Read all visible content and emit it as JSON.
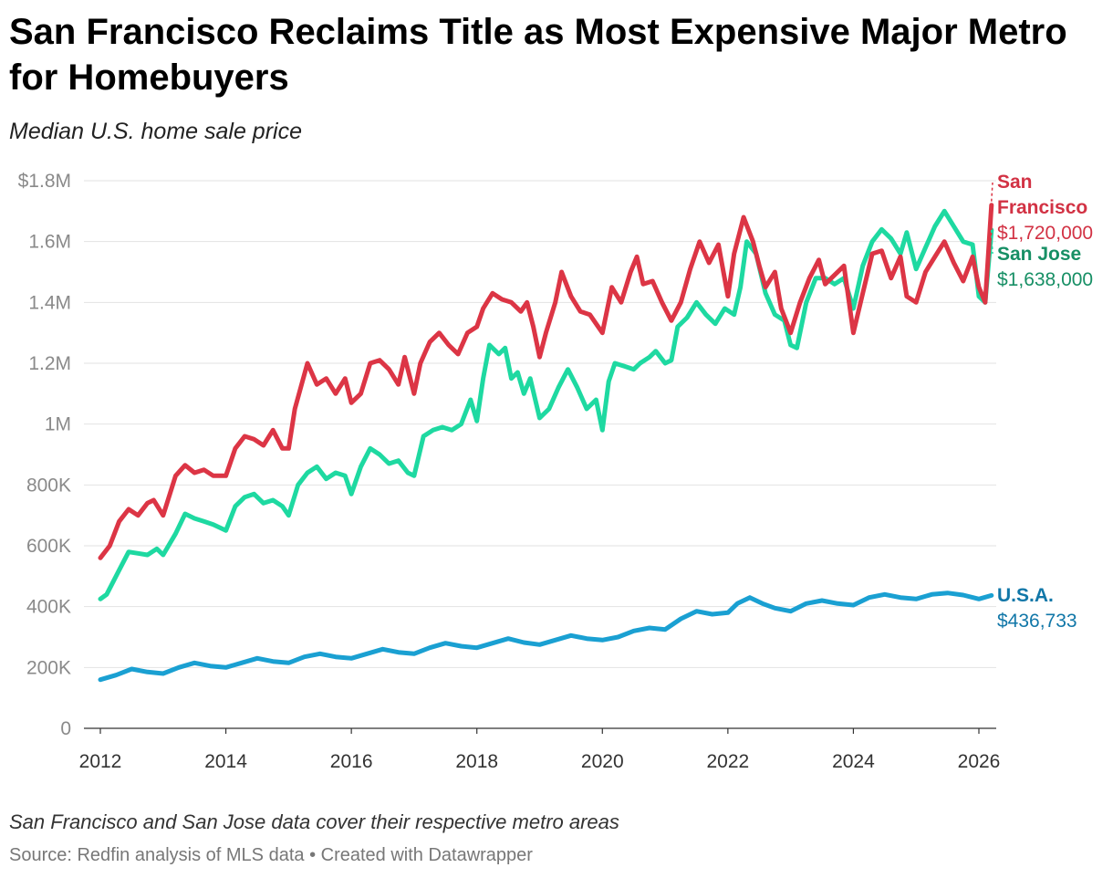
{
  "title": "San Francisco Reclaims Title as Most Expensive Major Metro for Homebuyers",
  "subtitle": "Median U.S. home sale price",
  "note": "San Francisco and San Jose data cover their respective metro areas",
  "source": "Source: Redfin analysis of MLS data • Created with Datawrapper",
  "chart_data": {
    "type": "line",
    "xlim": [
      2012,
      2026.3
    ],
    "ylim": [
      0,
      1800000
    ],
    "y_ticks": [
      {
        "value": 0,
        "label": "0"
      },
      {
        "value": 200000,
        "label": "200K"
      },
      {
        "value": 400000,
        "label": "400K"
      },
      {
        "value": 600000,
        "label": "600K"
      },
      {
        "value": 800000,
        "label": "800K"
      },
      {
        "value": 1000000,
        "label": "1M"
      },
      {
        "value": 1200000,
        "label": "1.2M"
      },
      {
        "value": 1400000,
        "label": "1.4M"
      },
      {
        "value": 1600000,
        "label": "1.6M"
      },
      {
        "value": 1800000,
        "label": "$1.8M"
      }
    ],
    "x_ticks": [
      {
        "value": 2012,
        "label": "2012"
      },
      {
        "value": 2014,
        "label": "2014"
      },
      {
        "value": 2016,
        "label": "2016"
      },
      {
        "value": 2018,
        "label": "2018"
      },
      {
        "value": 2020,
        "label": "2020"
      },
      {
        "value": 2022,
        "label": "2022"
      },
      {
        "value": 2024,
        "label": "2024"
      },
      {
        "value": 2026,
        "label": "2026"
      }
    ],
    "grid": true,
    "legend": "direct labels at line ends (right)",
    "series": [
      {
        "name": "San Francisco",
        "end_label": "$1,720,000",
        "color": "#dc3545",
        "label_color": "#d23244",
        "points": [
          [
            2012.0,
            560000
          ],
          [
            2012.15,
            600000
          ],
          [
            2012.3,
            680000
          ],
          [
            2012.45,
            720000
          ],
          [
            2012.6,
            700000
          ],
          [
            2012.75,
            740000
          ],
          [
            2012.85,
            750000
          ],
          [
            2013.0,
            700000
          ],
          [
            2013.2,
            830000
          ],
          [
            2013.35,
            865000
          ],
          [
            2013.5,
            840000
          ],
          [
            2013.65,
            850000
          ],
          [
            2013.8,
            830000
          ],
          [
            2014.0,
            830000
          ],
          [
            2014.15,
            920000
          ],
          [
            2014.3,
            960000
          ],
          [
            2014.45,
            950000
          ],
          [
            2014.6,
            930000
          ],
          [
            2014.75,
            980000
          ],
          [
            2014.9,
            920000
          ],
          [
            2015.0,
            920000
          ],
          [
            2015.1,
            1050000
          ],
          [
            2015.3,
            1200000
          ],
          [
            2015.45,
            1130000
          ],
          [
            2015.6,
            1150000
          ],
          [
            2015.75,
            1100000
          ],
          [
            2015.9,
            1150000
          ],
          [
            2016.0,
            1070000
          ],
          [
            2016.15,
            1100000
          ],
          [
            2016.3,
            1200000
          ],
          [
            2016.45,
            1210000
          ],
          [
            2016.6,
            1180000
          ],
          [
            2016.75,
            1130000
          ],
          [
            2016.85,
            1220000
          ],
          [
            2017.0,
            1100000
          ],
          [
            2017.1,
            1200000
          ],
          [
            2017.25,
            1270000
          ],
          [
            2017.4,
            1300000
          ],
          [
            2017.55,
            1260000
          ],
          [
            2017.7,
            1230000
          ],
          [
            2017.85,
            1300000
          ],
          [
            2018.0,
            1320000
          ],
          [
            2018.1,
            1380000
          ],
          [
            2018.25,
            1430000
          ],
          [
            2018.4,
            1410000
          ],
          [
            2018.55,
            1400000
          ],
          [
            2018.7,
            1370000
          ],
          [
            2018.8,
            1400000
          ],
          [
            2018.9,
            1320000
          ],
          [
            2019.0,
            1220000
          ],
          [
            2019.1,
            1300000
          ],
          [
            2019.25,
            1400000
          ],
          [
            2019.35,
            1500000
          ],
          [
            2019.5,
            1420000
          ],
          [
            2019.65,
            1370000
          ],
          [
            2019.8,
            1360000
          ],
          [
            2020.0,
            1300000
          ],
          [
            2020.15,
            1450000
          ],
          [
            2020.3,
            1400000
          ],
          [
            2020.45,
            1500000
          ],
          [
            2020.55,
            1550000
          ],
          [
            2020.65,
            1460000
          ],
          [
            2020.8,
            1470000
          ],
          [
            2020.95,
            1400000
          ],
          [
            2021.1,
            1340000
          ],
          [
            2021.25,
            1400000
          ],
          [
            2021.4,
            1510000
          ],
          [
            2021.55,
            1600000
          ],
          [
            2021.7,
            1530000
          ],
          [
            2021.85,
            1590000
          ],
          [
            2022.0,
            1420000
          ],
          [
            2022.1,
            1560000
          ],
          [
            2022.25,
            1680000
          ],
          [
            2022.4,
            1600000
          ],
          [
            2022.5,
            1520000
          ],
          [
            2022.6,
            1450000
          ],
          [
            2022.75,
            1500000
          ],
          [
            2022.85,
            1380000
          ],
          [
            2023.0,
            1300000
          ],
          [
            2023.15,
            1400000
          ],
          [
            2023.3,
            1480000
          ],
          [
            2023.45,
            1540000
          ],
          [
            2023.55,
            1460000
          ],
          [
            2023.7,
            1490000
          ],
          [
            2023.85,
            1520000
          ],
          [
            2024.0,
            1300000
          ],
          [
            2024.15,
            1430000
          ],
          [
            2024.3,
            1560000
          ],
          [
            2024.45,
            1570000
          ],
          [
            2024.6,
            1480000
          ],
          [
            2024.75,
            1550000
          ],
          [
            2024.85,
            1420000
          ],
          [
            2025.0,
            1400000
          ],
          [
            2025.15,
            1500000
          ],
          [
            2025.3,
            1550000
          ],
          [
            2025.45,
            1600000
          ],
          [
            2025.6,
            1530000
          ],
          [
            2025.75,
            1470000
          ],
          [
            2025.9,
            1550000
          ],
          [
            2026.0,
            1450000
          ],
          [
            2026.1,
            1400000
          ],
          [
            2026.2,
            1720000
          ]
        ]
      },
      {
        "name": "San Jose",
        "end_label": "$1,638,000",
        "color": "#1ed9a1",
        "label_color": "#178f65",
        "points": [
          [
            2012.0,
            425000
          ],
          [
            2012.1,
            440000
          ],
          [
            2012.3,
            520000
          ],
          [
            2012.45,
            580000
          ],
          [
            2012.6,
            575000
          ],
          [
            2012.75,
            570000
          ],
          [
            2012.9,
            590000
          ],
          [
            2013.0,
            570000
          ],
          [
            2013.2,
            640000
          ],
          [
            2013.35,
            705000
          ],
          [
            2013.5,
            690000
          ],
          [
            2013.65,
            680000
          ],
          [
            2013.8,
            670000
          ],
          [
            2013.9,
            660000
          ],
          [
            2014.0,
            650000
          ],
          [
            2014.15,
            730000
          ],
          [
            2014.3,
            760000
          ],
          [
            2014.45,
            770000
          ],
          [
            2014.6,
            740000
          ],
          [
            2014.75,
            750000
          ],
          [
            2014.9,
            730000
          ],
          [
            2015.0,
            700000
          ],
          [
            2015.15,
            800000
          ],
          [
            2015.3,
            840000
          ],
          [
            2015.45,
            860000
          ],
          [
            2015.6,
            820000
          ],
          [
            2015.75,
            840000
          ],
          [
            2015.9,
            830000
          ],
          [
            2016.0,
            770000
          ],
          [
            2016.15,
            860000
          ],
          [
            2016.3,
            920000
          ],
          [
            2016.45,
            900000
          ],
          [
            2016.6,
            870000
          ],
          [
            2016.75,
            880000
          ],
          [
            2016.9,
            840000
          ],
          [
            2017.0,
            830000
          ],
          [
            2017.15,
            960000
          ],
          [
            2017.3,
            980000
          ],
          [
            2017.45,
            990000
          ],
          [
            2017.6,
            980000
          ],
          [
            2017.75,
            1000000
          ],
          [
            2017.9,
            1080000
          ],
          [
            2018.0,
            1010000
          ],
          [
            2018.1,
            1150000
          ],
          [
            2018.2,
            1260000
          ],
          [
            2018.35,
            1230000
          ],
          [
            2018.45,
            1250000
          ],
          [
            2018.55,
            1150000
          ],
          [
            2018.65,
            1170000
          ],
          [
            2018.75,
            1100000
          ],
          [
            2018.85,
            1150000
          ],
          [
            2019.0,
            1020000
          ],
          [
            2019.15,
            1050000
          ],
          [
            2019.3,
            1120000
          ],
          [
            2019.45,
            1180000
          ],
          [
            2019.6,
            1120000
          ],
          [
            2019.75,
            1050000
          ],
          [
            2019.9,
            1080000
          ],
          [
            2020.0,
            980000
          ],
          [
            2020.1,
            1140000
          ],
          [
            2020.2,
            1200000
          ],
          [
            2020.35,
            1190000
          ],
          [
            2020.5,
            1180000
          ],
          [
            2020.6,
            1200000
          ],
          [
            2020.75,
            1220000
          ],
          [
            2020.85,
            1240000
          ],
          [
            2021.0,
            1200000
          ],
          [
            2021.1,
            1210000
          ],
          [
            2021.2,
            1320000
          ],
          [
            2021.35,
            1350000
          ],
          [
            2021.5,
            1400000
          ],
          [
            2021.65,
            1360000
          ],
          [
            2021.8,
            1330000
          ],
          [
            2021.95,
            1380000
          ],
          [
            2022.1,
            1360000
          ],
          [
            2022.2,
            1450000
          ],
          [
            2022.3,
            1600000
          ],
          [
            2022.45,
            1560000
          ],
          [
            2022.6,
            1430000
          ],
          [
            2022.75,
            1360000
          ],
          [
            2022.9,
            1340000
          ],
          [
            2023.0,
            1260000
          ],
          [
            2023.1,
            1250000
          ],
          [
            2023.25,
            1400000
          ],
          [
            2023.4,
            1480000
          ],
          [
            2023.55,
            1480000
          ],
          [
            2023.7,
            1460000
          ],
          [
            2023.85,
            1480000
          ],
          [
            2024.0,
            1380000
          ],
          [
            2024.15,
            1520000
          ],
          [
            2024.3,
            1600000
          ],
          [
            2024.45,
            1640000
          ],
          [
            2024.6,
            1610000
          ],
          [
            2024.75,
            1560000
          ],
          [
            2024.85,
            1630000
          ],
          [
            2025.0,
            1510000
          ],
          [
            2025.15,
            1580000
          ],
          [
            2025.3,
            1650000
          ],
          [
            2025.45,
            1700000
          ],
          [
            2025.6,
            1650000
          ],
          [
            2025.75,
            1600000
          ],
          [
            2025.9,
            1590000
          ],
          [
            2026.0,
            1420000
          ],
          [
            2026.1,
            1400000
          ],
          [
            2026.2,
            1638000
          ]
        ]
      },
      {
        "name": "U.S.A.",
        "end_label": "$436,733",
        "color": "#1aa0d2",
        "label_color": "#1177a8",
        "points": [
          [
            2012.0,
            160000
          ],
          [
            2012.25,
            175000
          ],
          [
            2012.5,
            195000
          ],
          [
            2012.75,
            185000
          ],
          [
            2013.0,
            180000
          ],
          [
            2013.25,
            200000
          ],
          [
            2013.5,
            215000
          ],
          [
            2013.75,
            205000
          ],
          [
            2014.0,
            200000
          ],
          [
            2014.25,
            215000
          ],
          [
            2014.5,
            230000
          ],
          [
            2014.75,
            220000
          ],
          [
            2015.0,
            215000
          ],
          [
            2015.25,
            235000
          ],
          [
            2015.5,
            245000
          ],
          [
            2015.75,
            235000
          ],
          [
            2016.0,
            230000
          ],
          [
            2016.25,
            245000
          ],
          [
            2016.5,
            260000
          ],
          [
            2016.75,
            250000
          ],
          [
            2017.0,
            245000
          ],
          [
            2017.25,
            265000
          ],
          [
            2017.5,
            280000
          ],
          [
            2017.75,
            270000
          ],
          [
            2018.0,
            265000
          ],
          [
            2018.25,
            280000
          ],
          [
            2018.5,
            295000
          ],
          [
            2018.75,
            282000
          ],
          [
            2019.0,
            275000
          ],
          [
            2019.25,
            290000
          ],
          [
            2019.5,
            305000
          ],
          [
            2019.75,
            295000
          ],
          [
            2020.0,
            290000
          ],
          [
            2020.25,
            300000
          ],
          [
            2020.5,
            320000
          ],
          [
            2020.75,
            330000
          ],
          [
            2021.0,
            325000
          ],
          [
            2021.25,
            360000
          ],
          [
            2021.5,
            385000
          ],
          [
            2021.75,
            375000
          ],
          [
            2022.0,
            380000
          ],
          [
            2022.15,
            410000
          ],
          [
            2022.35,
            430000
          ],
          [
            2022.55,
            410000
          ],
          [
            2022.75,
            395000
          ],
          [
            2023.0,
            385000
          ],
          [
            2023.25,
            410000
          ],
          [
            2023.5,
            420000
          ],
          [
            2023.75,
            410000
          ],
          [
            2024.0,
            405000
          ],
          [
            2024.25,
            430000
          ],
          [
            2024.5,
            440000
          ],
          [
            2024.75,
            430000
          ],
          [
            2025.0,
            425000
          ],
          [
            2025.25,
            440000
          ],
          [
            2025.5,
            445000
          ],
          [
            2025.75,
            438000
          ],
          [
            2026.0,
            425000
          ],
          [
            2026.2,
            436733
          ]
        ]
      }
    ]
  }
}
